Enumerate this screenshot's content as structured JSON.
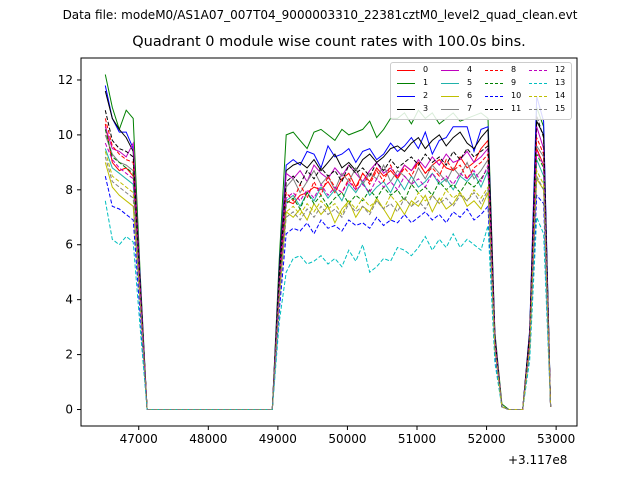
{
  "figure": {
    "suptitle": "Data file: modeM0/AS1A07_007T04_9000003310_22381cztM0_level2_quad_clean.evt",
    "offset_text": "+3.117e8"
  },
  "chart_data": {
    "type": "line",
    "title": "Quadrant 0 module wise count rates with 100.0s bins.",
    "xlabel": "",
    "ylabel": "",
    "xlim": [
      46170,
      53300
    ],
    "ylim": [
      -0.6,
      12.8
    ],
    "x_ticks": [
      47000,
      48000,
      49000,
      50000,
      51000,
      52000,
      53000
    ],
    "x_tick_labels": [
      "47000",
      "48000",
      "49000",
      "50000",
      "51000",
      "52000",
      "53000"
    ],
    "y_ticks": [
      0,
      2,
      4,
      6,
      8,
      10,
      12
    ],
    "y_tick_labels": [
      "0",
      "2",
      "4",
      "6",
      "8",
      "10",
      "12"
    ],
    "legend_position": "top-right",
    "x": [
      46520,
      46620,
      46720,
      46820,
      46920,
      47020,
      47120,
      48920,
      49020,
      49120,
      49220,
      49320,
      49420,
      49520,
      49620,
      49720,
      49820,
      49920,
      50020,
      50120,
      50220,
      50320,
      50420,
      50520,
      50620,
      50720,
      50820,
      50920,
      51020,
      51120,
      51220,
      51320,
      51420,
      51520,
      51620,
      51720,
      51820,
      51920,
      52020,
      52120,
      52220,
      52320,
      52420,
      52520,
      52620,
      52720,
      52820,
      52920
    ],
    "series": [
      {
        "name": "0",
        "color": "#ff0000",
        "dash": "solid",
        "values": [
          10.4,
          9.0,
          8.7,
          8.8,
          8.5,
          4.5,
          0,
          0,
          4.5,
          7.6,
          7.5,
          7.8,
          7.9,
          8.1,
          8.0,
          8.3,
          7.9,
          8.4,
          8.6,
          8.1,
          8.6,
          8.3,
          8.8,
          8.5,
          8.7,
          8.4,
          8.9,
          8.7,
          9.0,
          8.6,
          8.9,
          9.1,
          8.8,
          8.7,
          9.2,
          8.8,
          9.0,
          9.5,
          9.8,
          2.5,
          0.1,
          0,
          0,
          0,
          2.5,
          9.5,
          8.9,
          0.1
        ]
      },
      {
        "name": "1",
        "color": "#008000",
        "dash": "solid",
        "values": [
          12.2,
          11.0,
          10.2,
          10.9,
          10.6,
          5.0,
          0,
          0,
          5.5,
          10.0,
          10.1,
          9.8,
          9.5,
          10.1,
          10.2,
          10.0,
          9.8,
          10.2,
          10.0,
          10.1,
          10.2,
          10.5,
          9.9,
          10.2,
          10.6,
          10.6,
          10.8,
          10.4,
          10.9,
          10.6,
          10.8,
          10.4,
          10.6,
          10.8,
          10.5,
          10.6,
          10.7,
          10.8,
          10.6,
          2.8,
          0.2,
          0,
          0,
          0,
          2.8,
          11.0,
          10.3,
          0.1
        ]
      },
      {
        "name": "2",
        "color": "#0000ff",
        "dash": "solid",
        "values": [
          11.8,
          10.6,
          10.1,
          10.1,
          9.5,
          4.8,
          0,
          0,
          5.2,
          8.9,
          9.1,
          8.9,
          9.4,
          9.3,
          8.8,
          9.6,
          9.2,
          9.3,
          9.5,
          9.0,
          9.4,
          9.5,
          9.1,
          9.3,
          9.7,
          9.4,
          9.6,
          9.9,
          9.5,
          10.1,
          9.3,
          9.8,
          9.9,
          10.3,
          10.3,
          10.3,
          9.4,
          10.2,
          10.3,
          2.7,
          0.1,
          0,
          0,
          0,
          2.9,
          11.4,
          10.5,
          0.1
        ]
      },
      {
        "name": "3",
        "color": "#000000",
        "dash": "solid",
        "values": [
          11.6,
          10.6,
          10.2,
          9.9,
          9.4,
          4.6,
          0,
          0,
          5.1,
          8.7,
          8.9,
          9.0,
          8.8,
          9.1,
          8.7,
          9.0,
          9.3,
          8.8,
          9.0,
          8.7,
          9.1,
          9.3,
          9.0,
          9.2,
          9.5,
          9.6,
          9.4,
          9.7,
          9.9,
          9.5,
          9.8,
          10.0,
          9.6,
          9.9,
          10.1,
          9.7,
          9.5,
          9.9,
          10.2,
          2.6,
          0.1,
          0,
          0,
          0,
          2.8,
          10.5,
          10.0,
          0.1
        ]
      },
      {
        "name": "4",
        "color": "#bf00bf",
        "dash": "solid",
        "values": [
          10.3,
          9.5,
          9.4,
          9.2,
          9.7,
          4.6,
          0,
          0,
          4.8,
          8.6,
          8.4,
          8.7,
          8.3,
          8.9,
          8.6,
          8.4,
          8.8,
          8.5,
          8.9,
          8.6,
          8.3,
          8.7,
          9.0,
          8.6,
          8.8,
          8.5,
          8.9,
          8.7,
          9.1,
          8.8,
          9.2,
          8.9,
          9.3,
          9.0,
          9.1,
          9.4,
          9.0,
          9.2,
          9.5,
          2.6,
          0.1,
          0,
          0,
          0,
          2.6,
          10.3,
          9.5,
          0.1
        ]
      },
      {
        "name": "5",
        "color": "#20b2aa",
        "dash": "solid",
        "values": [
          9.5,
          8.8,
          8.6,
          8.4,
          8.2,
          4.2,
          0,
          0,
          4.4,
          7.6,
          7.8,
          7.4,
          7.9,
          7.6,
          8.1,
          7.7,
          8.0,
          7.6,
          8.2,
          7.9,
          8.3,
          7.8,
          8.1,
          8.3,
          7.9,
          8.4,
          8.0,
          8.5,
          8.1,
          8.3,
          8.6,
          8.2,
          8.4,
          8.0,
          8.5,
          8.3,
          8.6,
          8.1,
          8.7,
          2.4,
          0.1,
          0,
          0,
          0,
          2.4,
          9.1,
          8.5,
          0.1
        ]
      },
      {
        "name": "6",
        "color": "#bfbf00",
        "dash": "solid",
        "values": [
          9.0,
          8.1,
          7.8,
          7.6,
          7.4,
          3.9,
          0,
          0,
          4.0,
          7.2,
          7.0,
          7.3,
          6.9,
          7.5,
          7.1,
          7.4,
          6.8,
          7.3,
          7.6,
          7.0,
          7.4,
          7.2,
          7.7,
          7.3,
          6.9,
          7.5,
          7.1,
          7.6,
          7.4,
          7.8,
          7.2,
          7.7,
          7.3,
          7.5,
          7.9,
          7.4,
          7.6,
          7.3,
          7.9,
          2.2,
          0.1,
          0,
          0,
          0,
          2.2,
          8.4,
          8.0,
          0.1
        ]
      },
      {
        "name": "7",
        "color": "#808080",
        "dash": "solid",
        "values": [
          10.0,
          9.3,
          9.0,
          8.9,
          8.7,
          4.4,
          0,
          0,
          4.7,
          8.1,
          8.4,
          7.9,
          8.3,
          8.7,
          8.2,
          8.5,
          8.0,
          8.6,
          8.3,
          8.8,
          8.2,
          8.6,
          8.4,
          8.9,
          8.3,
          8.7,
          8.5,
          8.2,
          8.8,
          8.4,
          8.9,
          8.6,
          8.3,
          8.8,
          8.5,
          9.0,
          8.4,
          8.7,
          9.1,
          2.5,
          0.1,
          0,
          0,
          0,
          2.5,
          9.6,
          9.2,
          0.1
        ]
      },
      {
        "name": "8",
        "color": "#ff0000",
        "dash": "dashed",
        "values": [
          10.6,
          9.6,
          9.3,
          9.1,
          9.0,
          4.5,
          0,
          0,
          4.6,
          7.9,
          7.6,
          8.2,
          7.7,
          8.3,
          7.8,
          8.5,
          8.1,
          7.9,
          8.4,
          8.0,
          8.6,
          8.2,
          8.7,
          8.3,
          8.9,
          8.4,
          8.8,
          8.5,
          9.0,
          8.6,
          8.8,
          8.5,
          9.1,
          8.7,
          8.9,
          8.4,
          8.8,
          9.0,
          9.3,
          2.5,
          0.1,
          0,
          0,
          0,
          2.6,
          9.9,
          9.3,
          0.1
        ]
      },
      {
        "name": "9",
        "color": "#008000",
        "dash": "dashed",
        "values": [
          10.2,
          9.2,
          9.0,
          8.8,
          8.6,
          4.4,
          0,
          0,
          4.5,
          7.5,
          7.7,
          7.3,
          7.9,
          7.5,
          7.8,
          7.4,
          7.7,
          7.9,
          7.5,
          7.8,
          7.6,
          8.0,
          7.7,
          8.1,
          7.8,
          8.0,
          7.6,
          8.2,
          7.9,
          8.1,
          7.8,
          8.3,
          8.0,
          8.2,
          7.9,
          8.3,
          8.1,
          8.4,
          8.8,
          2.4,
          0.1,
          0,
          0,
          0,
          2.5,
          9.3,
          8.8,
          0.1
        ]
      },
      {
        "name": "10",
        "color": "#0000ff",
        "dash": "dashed",
        "values": [
          8.5,
          7.4,
          7.3,
          7.1,
          6.9,
          3.5,
          0,
          0,
          3.6,
          6.4,
          6.6,
          6.5,
          6.8,
          6.4,
          6.9,
          6.6,
          6.7,
          6.5,
          6.9,
          6.7,
          6.8,
          6.6,
          7.0,
          6.7,
          6.9,
          6.8,
          7.1,
          6.8,
          7.0,
          7.2,
          6.9,
          7.1,
          6.8,
          7.2,
          7.0,
          7.3,
          6.9,
          7.1,
          7.4,
          2.0,
          0.1,
          0,
          0,
          0,
          2.1,
          7.8,
          7.5,
          0.1
        ]
      },
      {
        "name": "11",
        "color": "#000000",
        "dash": "dashed",
        "values": [
          10.9,
          9.8,
          9.5,
          9.4,
          9.2,
          4.6,
          0,
          0,
          4.8,
          8.3,
          8.5,
          8.2,
          8.7,
          8.4,
          8.8,
          8.5,
          8.7,
          8.3,
          8.9,
          8.6,
          8.8,
          8.5,
          9.0,
          8.7,
          9.1,
          8.8,
          9.0,
          9.2,
          8.9,
          9.3,
          9.0,
          9.2,
          8.9,
          9.4,
          9.1,
          9.5,
          9.2,
          9.4,
          9.6,
          2.6,
          0.1,
          0,
          0,
          0,
          2.7,
          10.7,
          9.9,
          0.1
        ]
      },
      {
        "name": "12",
        "color": "#bf00bf",
        "dash": "dashed",
        "values": [
          9.7,
          9.1,
          8.8,
          8.6,
          8.4,
          4.3,
          0,
          0,
          4.4,
          7.7,
          7.9,
          7.6,
          8.0,
          7.7,
          8.2,
          7.8,
          8.1,
          7.9,
          8.3,
          8.0,
          8.2,
          7.9,
          8.4,
          8.1,
          8.3,
          8.0,
          8.5,
          8.2,
          8.4,
          8.1,
          8.6,
          8.3,
          8.5,
          8.2,
          8.6,
          8.4,
          8.7,
          8.3,
          8.9,
          2.4,
          0.1,
          0,
          0,
          0,
          2.4,
          9.4,
          8.9,
          0.1
        ]
      },
      {
        "name": "13",
        "color": "#00bfbf",
        "dash": "dashed",
        "values": [
          7.6,
          6.2,
          6.0,
          6.3,
          6.1,
          3.0,
          0,
          0,
          3.2,
          5.0,
          5.5,
          5.6,
          5.3,
          5.4,
          5.6,
          5.3,
          5.5,
          5.2,
          5.8,
          5.4,
          6.0,
          5.0,
          5.2,
          5.5,
          5.4,
          5.9,
          5.8,
          5.6,
          5.9,
          6.3,
          5.8,
          6.2,
          5.9,
          6.4,
          5.9,
          6.2,
          6.0,
          5.8,
          6.7,
          1.7,
          0.1,
          0,
          0,
          0,
          1.8,
          7.0,
          6.4,
          0.1
        ]
      },
      {
        "name": "14",
        "color": "#bfbf00",
        "dash": "dashed",
        "values": [
          9.4,
          8.5,
          8.3,
          8.1,
          7.9,
          4.0,
          0,
          0,
          4.1,
          7.2,
          7.4,
          7.1,
          7.5,
          7.2,
          7.6,
          7.3,
          7.5,
          7.1,
          7.6,
          7.3,
          7.7,
          7.4,
          7.6,
          7.3,
          7.8,
          7.5,
          7.7,
          7.4,
          7.9,
          7.6,
          7.8,
          7.5,
          8.0,
          7.7,
          7.9,
          7.6,
          8.0,
          7.7,
          8.1,
          2.2,
          0.1,
          0,
          0,
          0,
          2.3,
          8.7,
          8.2,
          0.1
        ]
      },
      {
        "name": "15",
        "color": "#808080",
        "dash": "dashed",
        "values": [
          9.2,
          8.3,
          8.1,
          7.9,
          7.7,
          3.9,
          0,
          0,
          4.0,
          7.0,
          7.2,
          6.9,
          7.3,
          7.0,
          7.4,
          7.1,
          7.3,
          7.0,
          7.5,
          7.2,
          7.4,
          7.1,
          7.6,
          7.3,
          7.5,
          7.2,
          7.7,
          7.4,
          7.6,
          7.3,
          7.8,
          7.5,
          7.7,
          7.4,
          7.8,
          7.6,
          7.9,
          7.5,
          8.0,
          2.2,
          0.1,
          0,
          0,
          0,
          2.2,
          8.5,
          8.0,
          0.1
        ]
      }
    ]
  }
}
